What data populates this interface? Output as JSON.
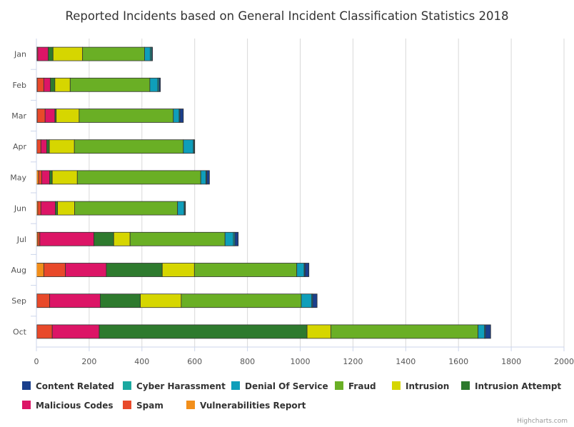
{
  "chart_data": {
    "type": "bar",
    "stacked": true,
    "orientation": "horizontal",
    "title": "Reported Incidents based on General Incident Classification Statistics 2018",
    "categories": [
      "Jan",
      "Feb",
      "Mar",
      "Apr",
      "May",
      "Jun",
      "Jul",
      "Aug",
      "Sep",
      "Oct"
    ],
    "xlim": [
      0,
      2000
    ],
    "ticks": [
      0,
      200,
      400,
      600,
      800,
      1000,
      1200,
      1400,
      1600,
      1800,
      2000
    ],
    "grid": true,
    "legend_position": "bottom",
    "credits": "Highcharts.com",
    "series": [
      {
        "name": "Vulnerabilities Report",
        "color": "#F28F1B",
        "values": [
          2,
          3,
          3,
          2,
          8,
          5,
          5,
          28,
          2,
          2
        ]
      },
      {
        "name": "Spam",
        "color": "#E8492A",
        "values": [
          3,
          25,
          30,
          15,
          12,
          12,
          8,
          82,
          48,
          58
        ]
      },
      {
        "name": "Malicious Codes",
        "color": "#DC1566",
        "values": [
          40,
          25,
          37,
          22,
          30,
          55,
          205,
          155,
          192,
          178
        ]
      },
      {
        "name": "Intrusion Attempt",
        "color": "#2E7A2E",
        "values": [
          18,
          17,
          5,
          10,
          10,
          8,
          75,
          212,
          152,
          788
        ]
      },
      {
        "name": "Intrusion",
        "color": "#D6D600",
        "values": [
          112,
          58,
          87,
          95,
          95,
          65,
          62,
          122,
          155,
          90
        ]
      },
      {
        "name": "Fraud",
        "color": "#6AAF25",
        "values": [
          235,
          302,
          357,
          413,
          468,
          390,
          360,
          388,
          455,
          558
        ]
      },
      {
        "name": "Denial Of Service",
        "color": "#0F9EBA",
        "values": [
          22,
          30,
          22,
          38,
          20,
          25,
          32,
          28,
          40,
          25
        ]
      },
      {
        "name": "Cyber Harassment",
        "color": "#1AA8A0",
        "values": [
          5,
          5,
          3,
          3,
          3,
          3,
          5,
          3,
          3,
          3
        ]
      },
      {
        "name": "Content Related",
        "color": "#1A3F8C",
        "values": [
          3,
          5,
          13,
          2,
          10,
          2,
          13,
          15,
          17,
          20
        ]
      }
    ],
    "legend_order": [
      "Content Related",
      "Cyber Harassment",
      "Denial Of Service",
      "Fraud",
      "Intrusion",
      "Intrusion Attempt",
      "Malicious Codes",
      "Spam",
      "Vulnerabilities Report"
    ]
  }
}
